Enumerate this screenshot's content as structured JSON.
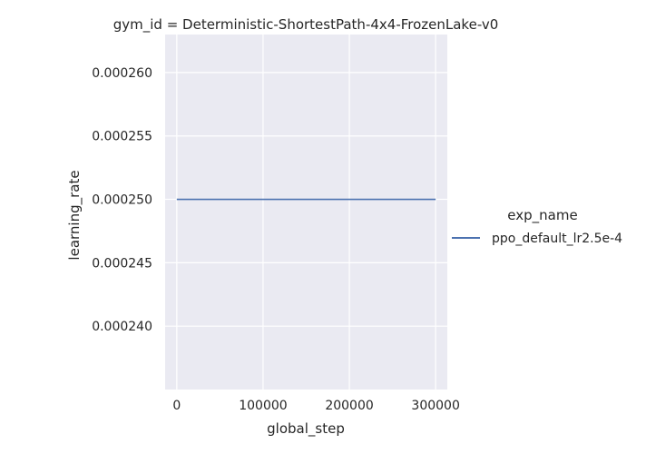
{
  "chart_data": {
    "type": "line",
    "title": "gym_id = Deterministic-ShortestPath-4x4-FrozenLake-v0",
    "xlabel": "global_step",
    "ylabel": "learning_rate",
    "x_ticks": [
      0,
      100000,
      200000,
      300000
    ],
    "x_tick_labels": [
      "0",
      "100000",
      "200000",
      "300000"
    ],
    "y_ticks": [
      0.00024,
      0.000245,
      0.00025,
      0.000255,
      0.00026
    ],
    "y_tick_labels": [
      "0.000240",
      "0.000245",
      "0.000250",
      "0.000255",
      "0.000260"
    ],
    "xlim": [
      -13500,
      313500
    ],
    "ylim": [
      0.000235,
      0.000263
    ],
    "grid": true,
    "background": "#eaeaf2",
    "legend": {
      "title": "exp_name",
      "placement": "right"
    },
    "series": [
      {
        "name": "ppo_default_lr2.5e-4",
        "color": "#4c72b0",
        "x": [
          0,
          300000
        ],
        "y": [
          0.00025,
          0.00025
        ]
      }
    ]
  }
}
